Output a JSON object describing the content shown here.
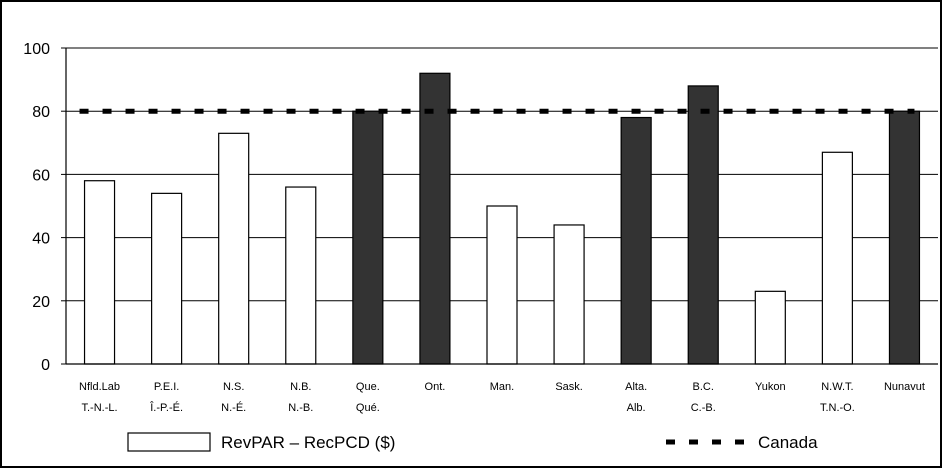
{
  "chart_data": {
    "type": "bar",
    "categories": [
      [
        "Nfld.Lab",
        "T.-N.-L."
      ],
      [
        "P.E.I.",
        "Î.-P.-É."
      ],
      [
        "N.S.",
        "N.-É."
      ],
      [
        "N.B.",
        "N.-B."
      ],
      [
        "Que.",
        "Qué."
      ],
      [
        "Ont.",
        ""
      ],
      [
        "Man.",
        ""
      ],
      [
        "Sask.",
        ""
      ],
      [
        "Alta.",
        "Alb."
      ],
      [
        "B.C.",
        "C.-B."
      ],
      [
        "Yukon",
        ""
      ],
      [
        "N.W.T.",
        "T.N.-O."
      ],
      [
        "Nunavut",
        ""
      ]
    ],
    "series": [
      {
        "name": "RevPAR – RecPCD ($)",
        "values": [
          58,
          54,
          73,
          56,
          80,
          92,
          50,
          44,
          78,
          88,
          23,
          67,
          80
        ],
        "highlight": [
          false,
          false,
          false,
          false,
          true,
          true,
          false,
          false,
          true,
          true,
          false,
          false,
          true
        ]
      }
    ],
    "reference_line": {
      "name": "Canada",
      "value": 80,
      "style": "dashed"
    },
    "y_ticks": [
      0,
      20,
      40,
      60,
      80,
      100
    ],
    "ylim": [
      0,
      100
    ],
    "grid": true,
    "legend_position": "bottom",
    "colors": {
      "bar_fill": "#ffffff",
      "bar_highlight": "#333333",
      "bar_stroke": "#000000",
      "grid": "#000000"
    }
  }
}
